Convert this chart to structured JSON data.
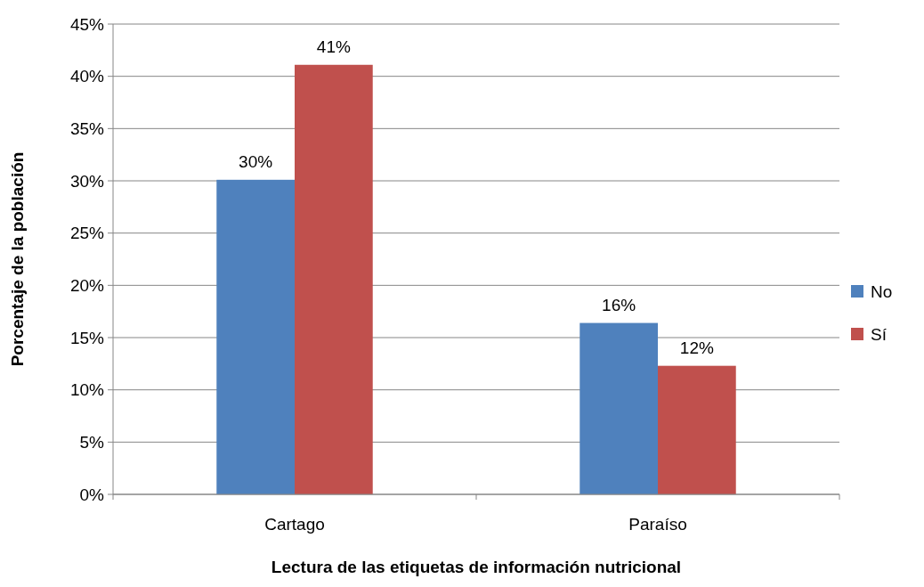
{
  "chart_data": {
    "type": "bar",
    "xlabel": "Lectura de las etiquetas de información nutricional",
    "ylabel": "Porcentaje de la población",
    "categories": [
      "Cartago",
      "Paraíso"
    ],
    "series": [
      {
        "name": "No",
        "color": "#4f81bd",
        "values": [
          30.1,
          16.4
        ],
        "value_labels": [
          "30%",
          "16%"
        ]
      },
      {
        "name": "Sí",
        "color": "#c0504d",
        "values": [
          41.1,
          12.3
        ],
        "value_labels": [
          "41%",
          "12%"
        ]
      }
    ],
    "ylim": [
      0,
      45
    ],
    "yticks": [
      {
        "value": 0,
        "label": "0%"
      },
      {
        "value": 5,
        "label": "5%"
      },
      {
        "value": 10,
        "label": "10%"
      },
      {
        "value": 15,
        "label": "15%"
      },
      {
        "value": 20,
        "label": "20%"
      },
      {
        "value": 25,
        "label": "25%"
      },
      {
        "value": 30,
        "label": "30%"
      },
      {
        "value": 35,
        "label": "35%"
      },
      {
        "value": 40,
        "label": "40%"
      },
      {
        "value": 45,
        "label": "45%"
      }
    ],
    "grid": "y",
    "legend": "right"
  }
}
